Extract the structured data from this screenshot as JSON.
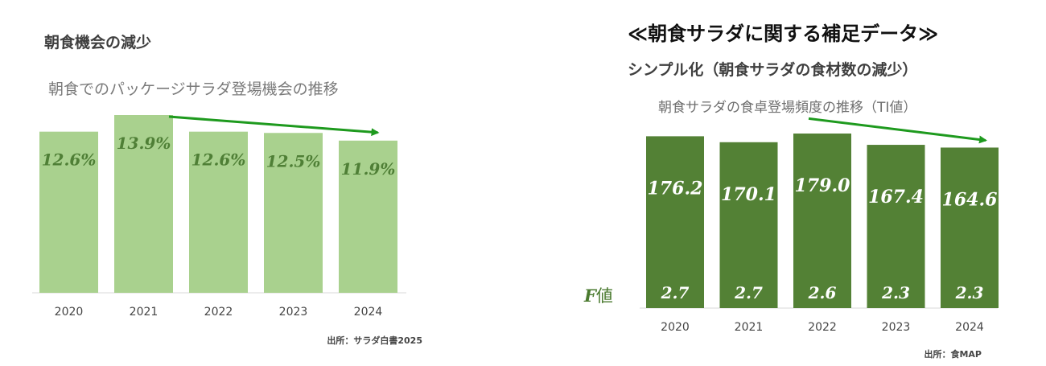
{
  "left_panel": {
    "title": "朝食機会の減少",
    "subtitle": "朝食でのパッケージサラダ登場機会の推移",
    "source": "出所：サラダ白書2025"
  },
  "right_panel": {
    "heading": "≪朝食サラダに関する補足データ≫",
    "section_title": "シンプル化（朝食サラダの食材数の減少）",
    "subtitle": "朝食サラダの食卓登場頻度の推移（TI値）",
    "f_label_letter": "F",
    "f_label_text": "値",
    "source": "出所：食MAP"
  },
  "chart_data": [
    {
      "type": "bar",
      "categories": [
        "2020",
        "2021",
        "2022",
        "2023",
        "2024"
      ],
      "values": [
        12.6,
        13.9,
        12.6,
        12.5,
        11.9
      ],
      "value_labels": [
        "12.6%",
        "13.9%",
        "12.6%",
        "12.5%",
        "11.9%"
      ],
      "title": "朝食でのパッケージサラダ登場機会の推移",
      "bar_color": "#a9d18e",
      "label_color": "#4f7f36",
      "trend_arrow": {
        "from": "2021",
        "to": "2024",
        "color": "#1e9a1e"
      }
    },
    {
      "type": "bar",
      "categories": [
        "2020",
        "2021",
        "2022",
        "2023",
        "2024"
      ],
      "series": [
        {
          "values": [
            176.2,
            170.1,
            179.0,
            167.4,
            164.6
          ],
          "labels": [
            "176.2",
            "170.1",
            "179.0",
            "167.4",
            "164.6"
          ]
        },
        {
          "name": "F値",
          "values": [
            2.7,
            2.7,
            2.6,
            2.3,
            2.3
          ],
          "labels": [
            "2.7",
            "2.7",
            "2.6",
            "2.3",
            "2.3"
          ]
        }
      ],
      "title": "朝食サラダの食卓登場頻度の推移（TI値）",
      "bar_color": "#538135",
      "label_color": "#ffffff",
      "trend_arrow": {
        "from": "2020",
        "to": "2024",
        "color": "#1e9a1e"
      }
    }
  ]
}
